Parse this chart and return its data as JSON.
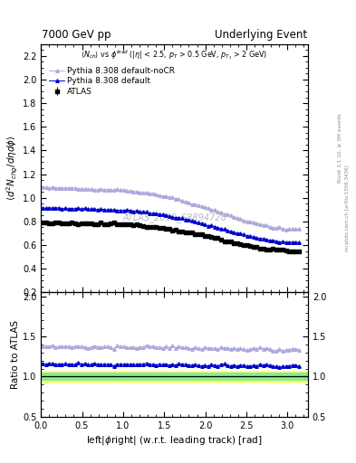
{
  "title_left": "7000 GeV pp",
  "title_right": "Underlying Event",
  "inner_title": "<N_{ch}> vs #phi^{lead} (|#eta| < 2.5, p_{T} > 0.5 GeV, p_{T_1} > 2 GeV)",
  "ylabel_main": "$\\langle d^2 N_{chg}/d\\eta d\\phi\\rangle$",
  "ylabel_ratio": "Ratio to ATLAS",
  "xlabel": "left|$\\phi$right| (w.r.t. leading track) [rad]",
  "right_label_top": "Rivet 3.1.10, ≥ 3M events",
  "right_label_bottom": "mcplots.cern.ch [arXiv:1306.3436]",
  "watermark": "ATLAS_2010_S8894728",
  "ylim_main": [
    0.2,
    2.3
  ],
  "ylim_ratio": [
    0.5,
    2.05
  ],
  "xlim": [
    0.0,
    3.25
  ],
  "yticks_main": [
    0.2,
    0.4,
    0.6,
    0.8,
    1.0,
    1.2,
    1.4,
    1.6,
    1.8,
    2.0,
    2.2
  ],
  "yticks_ratio": [
    0.5,
    1.0,
    1.5,
    2.0
  ],
  "legend_labels": [
    "ATLAS",
    "Pythia 8.308 default",
    "Pythia 8.308 default-noCR"
  ],
  "atlas_color": "#000000",
  "pythia_default_color": "#0000cc",
  "pythia_nocr_color": "#aaaadd",
  "band_yellow": "#ffff88",
  "band_green": "#88ee88",
  "n_points": 80
}
